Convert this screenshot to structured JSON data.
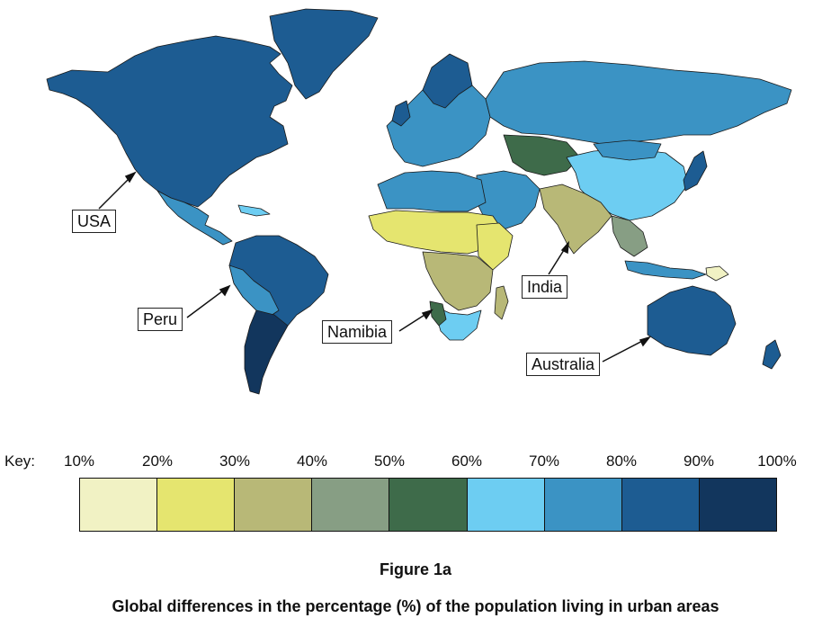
{
  "map": {
    "title": "Figure 1a",
    "caption": "Global differences in the percentage (%) of the population living in urban areas",
    "callouts": [
      {
        "id": "usa",
        "label": "USA"
      },
      {
        "id": "peru",
        "label": "Peru"
      },
      {
        "id": "namibia",
        "label": "Namibia"
      },
      {
        "id": "india",
        "label": "India"
      },
      {
        "id": "australia",
        "label": "Australia"
      }
    ]
  },
  "key": {
    "title": "Key:",
    "ticks": [
      "10%",
      "20%",
      "30%",
      "40%",
      "50%",
      "60%",
      "70%",
      "80%",
      "90%",
      "100%"
    ],
    "colors": [
      "#f1f2c4",
      "#e5e56f",
      "#b8b877",
      "#879e84",
      "#3e6b4a",
      "#6dcdf2",
      "#3b93c4",
      "#1d5c92",
      "#12365d"
    ]
  },
  "palette": {
    "c10": "#f1f2c4",
    "c20": "#e5e56f",
    "c30": "#b8b877",
    "c40": "#879e84",
    "c50": "#3e6b4a",
    "c60": "#6dcdf2",
    "c70": "#3b93c4",
    "c80": "#1d5c92",
    "c90": "#12365d"
  }
}
